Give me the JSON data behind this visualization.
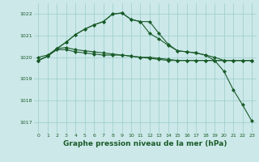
{
  "background_color": "#cce8e8",
  "grid_color": "#99cccc",
  "line_color": "#1a5c2a",
  "marker_color": "#1a5c2a",
  "xlabel": "Graphe pression niveau de la mer (hPa)",
  "xlabel_fontsize": 6.5,
  "xlim": [
    -0.5,
    23.5
  ],
  "ylim": [
    1016.5,
    1022.5
  ],
  "yticks": [
    1017,
    1018,
    1019,
    1020,
    1021,
    1022
  ],
  "xticks": [
    0,
    1,
    2,
    3,
    4,
    5,
    6,
    7,
    8,
    9,
    10,
    11,
    12,
    13,
    14,
    15,
    16,
    17,
    18,
    19,
    20,
    21,
    22,
    23
  ],
  "series": [
    {
      "x": [
        0,
        1,
        2,
        3,
        4,
        5,
        6,
        7,
        8,
        9,
        10,
        11,
        12,
        13,
        14,
        15,
        16,
        17,
        18,
        19,
        20,
        21,
        22,
        23
      ],
      "y": [
        1019.85,
        1020.05,
        1020.35,
        1020.35,
        1020.25,
        1020.2,
        1020.15,
        1020.1,
        1020.1,
        1020.1,
        1020.05,
        1020.0,
        1020.0,
        1019.95,
        1019.9,
        1019.85,
        1019.85,
        1019.85,
        1019.85,
        1019.85,
        1019.85,
        1019.85,
        1019.85,
        1019.85
      ],
      "marker": "D",
      "markersize": 2.0,
      "linewidth": 0.8
    },
    {
      "x": [
        0,
        1,
        2,
        3,
        4,
        5,
        6,
        7,
        8,
        9,
        10,
        11,
        12,
        13,
        14,
        15,
        16,
        17,
        18,
        19,
        20,
        21,
        22,
        23
      ],
      "y": [
        1020.0,
        1020.1,
        1020.4,
        1020.45,
        1020.35,
        1020.3,
        1020.25,
        1020.2,
        1020.15,
        1020.1,
        1020.05,
        1020.0,
        1019.95,
        1019.9,
        1019.85,
        1019.85,
        1019.85,
        1019.85,
        1019.85,
        1019.85,
        1019.85,
        1019.85,
        1019.85,
        1019.85
      ],
      "marker": "D",
      "markersize": 2.0,
      "linewidth": 0.8
    },
    {
      "x": [
        0,
        1,
        2,
        3,
        4,
        5,
        6,
        7,
        8,
        9,
        10,
        11,
        12,
        13,
        14,
        15,
        16,
        17,
        18,
        19,
        20,
        21,
        22,
        23
      ],
      "y": [
        1019.85,
        1020.05,
        1020.4,
        1020.7,
        1021.05,
        1021.3,
        1021.5,
        1021.65,
        1022.0,
        1022.05,
        1021.75,
        1021.65,
        1021.1,
        1020.85,
        1020.55,
        1020.3,
        1020.25,
        1020.2,
        1020.1,
        1020.0,
        1019.85,
        1019.85,
        1019.85,
        1019.85
      ],
      "marker": "D",
      "markersize": 2.0,
      "linewidth": 0.8
    },
    {
      "x": [
        0,
        1,
        2,
        3,
        4,
        5,
        6,
        7,
        8,
        9,
        10,
        11,
        12,
        13,
        14,
        15,
        16,
        17,
        18,
        19,
        20,
        21,
        22,
        23
      ],
      "y": [
        1019.85,
        1020.05,
        1020.4,
        1020.7,
        1021.05,
        1021.3,
        1021.5,
        1021.65,
        1022.0,
        1022.05,
        1021.75,
        1021.65,
        1021.65,
        1021.1,
        1020.6,
        1020.3,
        1020.25,
        1020.2,
        1020.1,
        1019.85,
        1019.35,
        1018.5,
        1017.8,
        1017.05
      ],
      "marker": "D",
      "markersize": 2.0,
      "linewidth": 0.8
    }
  ]
}
